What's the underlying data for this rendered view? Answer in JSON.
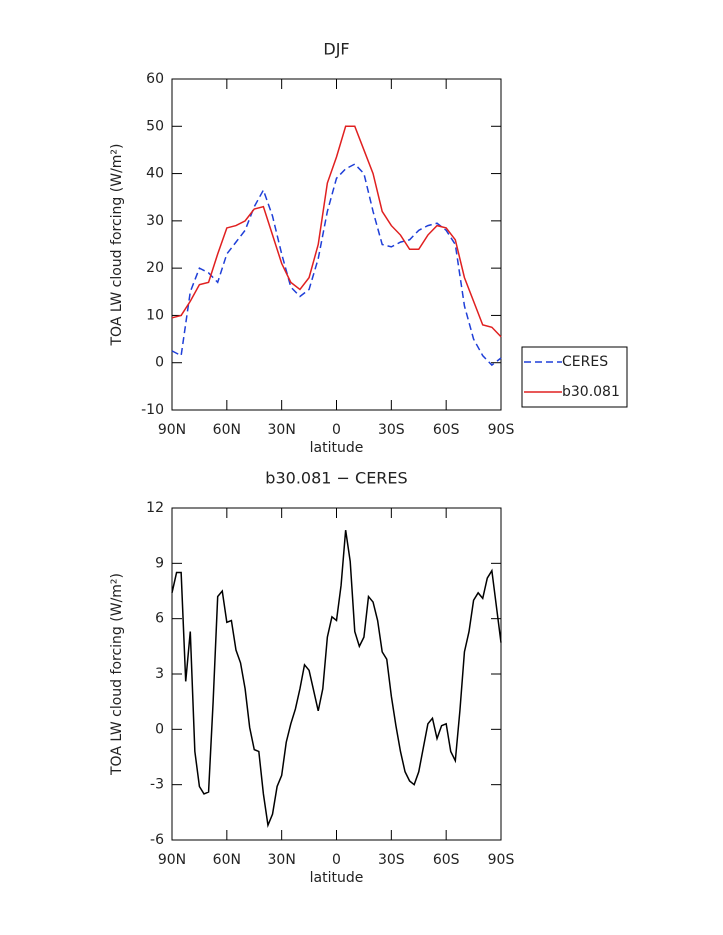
{
  "chart_data": [
    {
      "type": "line",
      "title": "DJF",
      "xlabel": "latitude",
      "ylabel": "TOA LW cloud forcing (W/m²)",
      "x": [
        90,
        85,
        80,
        75,
        70,
        65,
        60,
        55,
        50,
        45,
        40,
        35,
        30,
        25,
        20,
        15,
        10,
        5,
        0,
        -5,
        -10,
        -15,
        -20,
        -25,
        -30,
        -35,
        -40,
        -45,
        -50,
        -55,
        -60,
        -65,
        -70,
        -75,
        -80,
        -85,
        -90
      ],
      "series": [
        {
          "name": "CERES",
          "color": "#1f3fd8",
          "dash": true,
          "values": [
            2.5,
            1.5,
            15,
            20,
            19,
            17,
            23,
            25.5,
            28,
            33,
            36.5,
            31,
            23,
            16,
            14,
            15.5,
            22,
            32,
            39,
            41,
            42,
            40,
            32,
            25,
            24.5,
            25.5,
            26,
            28,
            29,
            29.5,
            28,
            25,
            12,
            5,
            1.5,
            -0.5,
            1
          ]
        },
        {
          "name": "b30.081",
          "color": "#e02020",
          "dash": false,
          "values": [
            9.5,
            10,
            13,
            16.5,
            17,
            23,
            28.5,
            29,
            30,
            32.5,
            33,
            27,
            21,
            17,
            15.5,
            18,
            25,
            38,
            43.5,
            50,
            50,
            45,
            40,
            32,
            29,
            27,
            24,
            24,
            27,
            29,
            28.5,
            26,
            18,
            13,
            8,
            7.5,
            5.5
          ]
        }
      ],
      "xlim": [
        90,
        -90
      ],
      "xticks": [
        {
          "value": 90,
          "label": "90N"
        },
        {
          "value": 60,
          "label": "60N"
        },
        {
          "value": 30,
          "label": "30N"
        },
        0,
        {
          "value": -30,
          "label": "30S"
        },
        {
          "value": -60,
          "label": "60S"
        },
        {
          "value": -90,
          "label": "90S"
        }
      ],
      "ylim": [
        -10,
        60
      ],
      "yticks": [
        -10,
        0,
        10,
        20,
        30,
        40,
        50,
        60
      ],
      "legend": "right"
    },
    {
      "type": "line",
      "title": "b30.081 − CERES",
      "xlabel": "latitude",
      "ylabel": "TOA LW cloud forcing (W/m²)",
      "x": [
        90,
        87.5,
        85,
        82.5,
        80,
        77.5,
        75,
        72.5,
        70,
        67.5,
        65,
        62.5,
        60,
        57.5,
        55,
        52.5,
        50,
        47.5,
        45,
        42.5,
        40,
        37.5,
        35,
        32.5,
        30,
        27.5,
        25,
        22.5,
        20,
        17.5,
        15,
        12.5,
        10,
        7.5,
        5,
        2.5,
        0,
        -2.5,
        -5,
        -7.5,
        -10,
        -12.5,
        -15,
        -17.5,
        -20,
        -22.5,
        -25,
        -27.5,
        -30,
        -32.5,
        -35,
        -37.5,
        -40,
        -42.5,
        -45,
        -47.5,
        -50,
        -52.5,
        -55,
        -57.5,
        -60,
        -62.5,
        -65,
        -67.5,
        -70,
        -72.5,
        -75,
        -77.5,
        -80,
        -82.5,
        -85,
        -90
      ],
      "series": [
        {
          "color": "#000000",
          "dash": false,
          "values": [
            7.4,
            8.5,
            8.5,
            2.6,
            5.3,
            -1.2,
            -3.1,
            -3.5,
            -3.4,
            1.5,
            7.2,
            7.5,
            5.8,
            5.9,
            4.3,
            3.6,
            2.2,
            0.1,
            -1.1,
            -1.2,
            -3.5,
            -5.2,
            -4.6,
            -3.1,
            -2.5,
            -0.7,
            0.3,
            1.1,
            2.2,
            3.5,
            3.2,
            2.1,
            1.0,
            2.2,
            5.0,
            6.1,
            5.9,
            7.8,
            10.8,
            9.1,
            5.3,
            4.5,
            5.0,
            7.2,
            6.9,
            5.9,
            4.2,
            3.8,
            1.8,
            0.2,
            -1.2,
            -2.3,
            -2.8,
            -3.0,
            -2.3,
            -1.0,
            0.3,
            0.6,
            -0.5,
            0.2,
            0.3,
            -1.2,
            -1.7,
            1.0,
            4.2,
            5.3,
            7.0,
            7.4,
            7.1,
            8.2,
            8.6,
            4.7
          ]
        }
      ],
      "xlim": [
        90,
        -90
      ],
      "xticks": [
        {
          "value": 90,
          "label": "90N"
        },
        {
          "value": 60,
          "label": "60N"
        },
        {
          "value": 30,
          "label": "30N"
        },
        0,
        {
          "value": -30,
          "label": "30S"
        },
        {
          "value": -60,
          "label": "60S"
        },
        {
          "value": -90,
          "label": "90S"
        }
      ],
      "ylim": [
        -6,
        12
      ],
      "yticks": [
        -6,
        -3,
        0,
        3,
        6,
        9,
        12
      ]
    }
  ]
}
